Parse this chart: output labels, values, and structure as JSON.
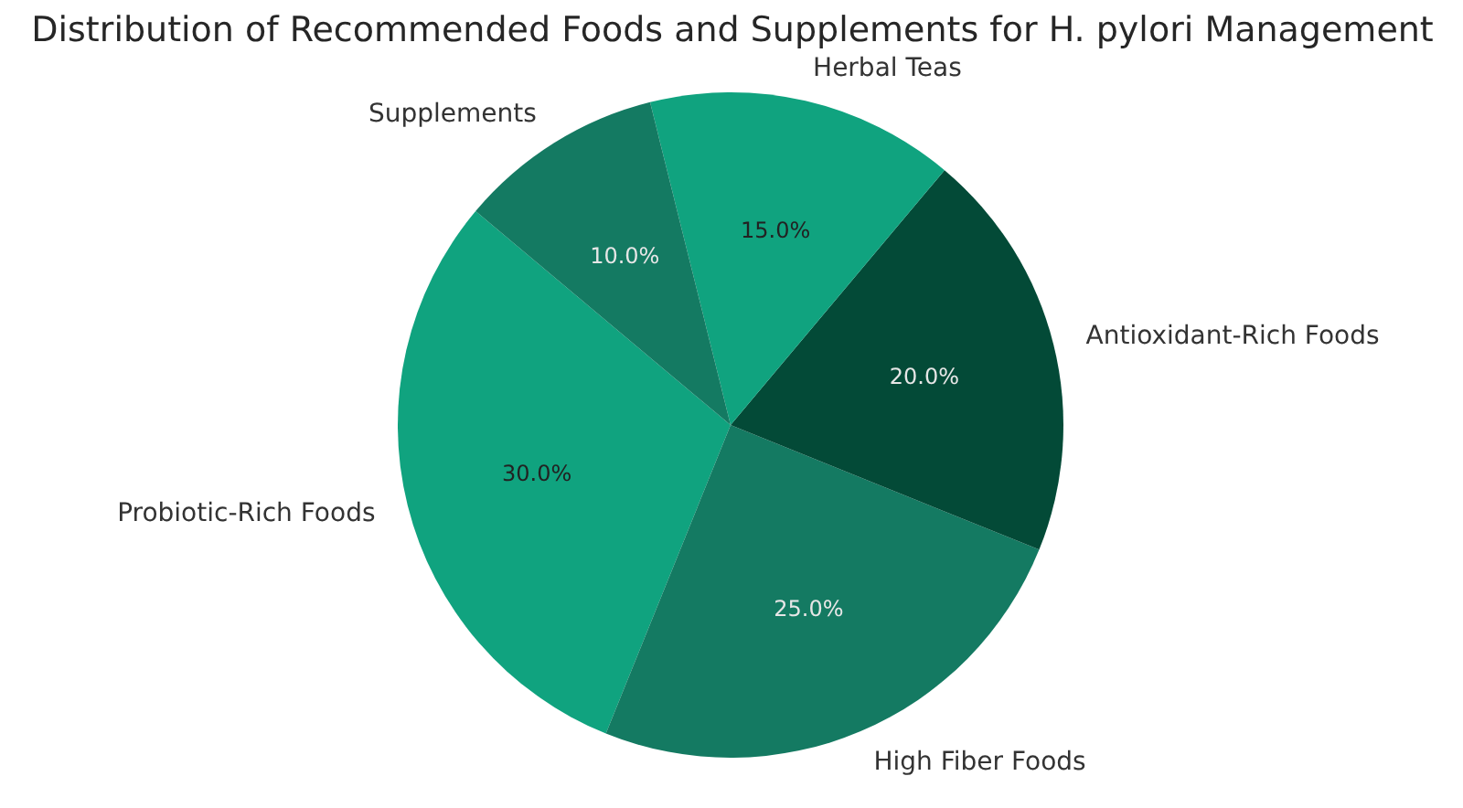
{
  "chart_data": {
    "type": "pie",
    "title": "Distribution of Recommended Foods and Supplements for H. pylori Management",
    "categories": [
      "Probiotic-Rich Foods",
      "High Fiber Foods",
      "Antioxidant-Rich Foods",
      "Herbal Teas",
      "Supplements"
    ],
    "values": [
      30,
      25,
      20,
      15,
      10
    ],
    "colors": [
      "#10a37f",
      "#147a62",
      "#034a37",
      "#10a37f",
      "#147a62"
    ],
    "value_labels": [
      "30.0%",
      "25.0%",
      "20.0%",
      "15.0%",
      "10.0%"
    ]
  }
}
